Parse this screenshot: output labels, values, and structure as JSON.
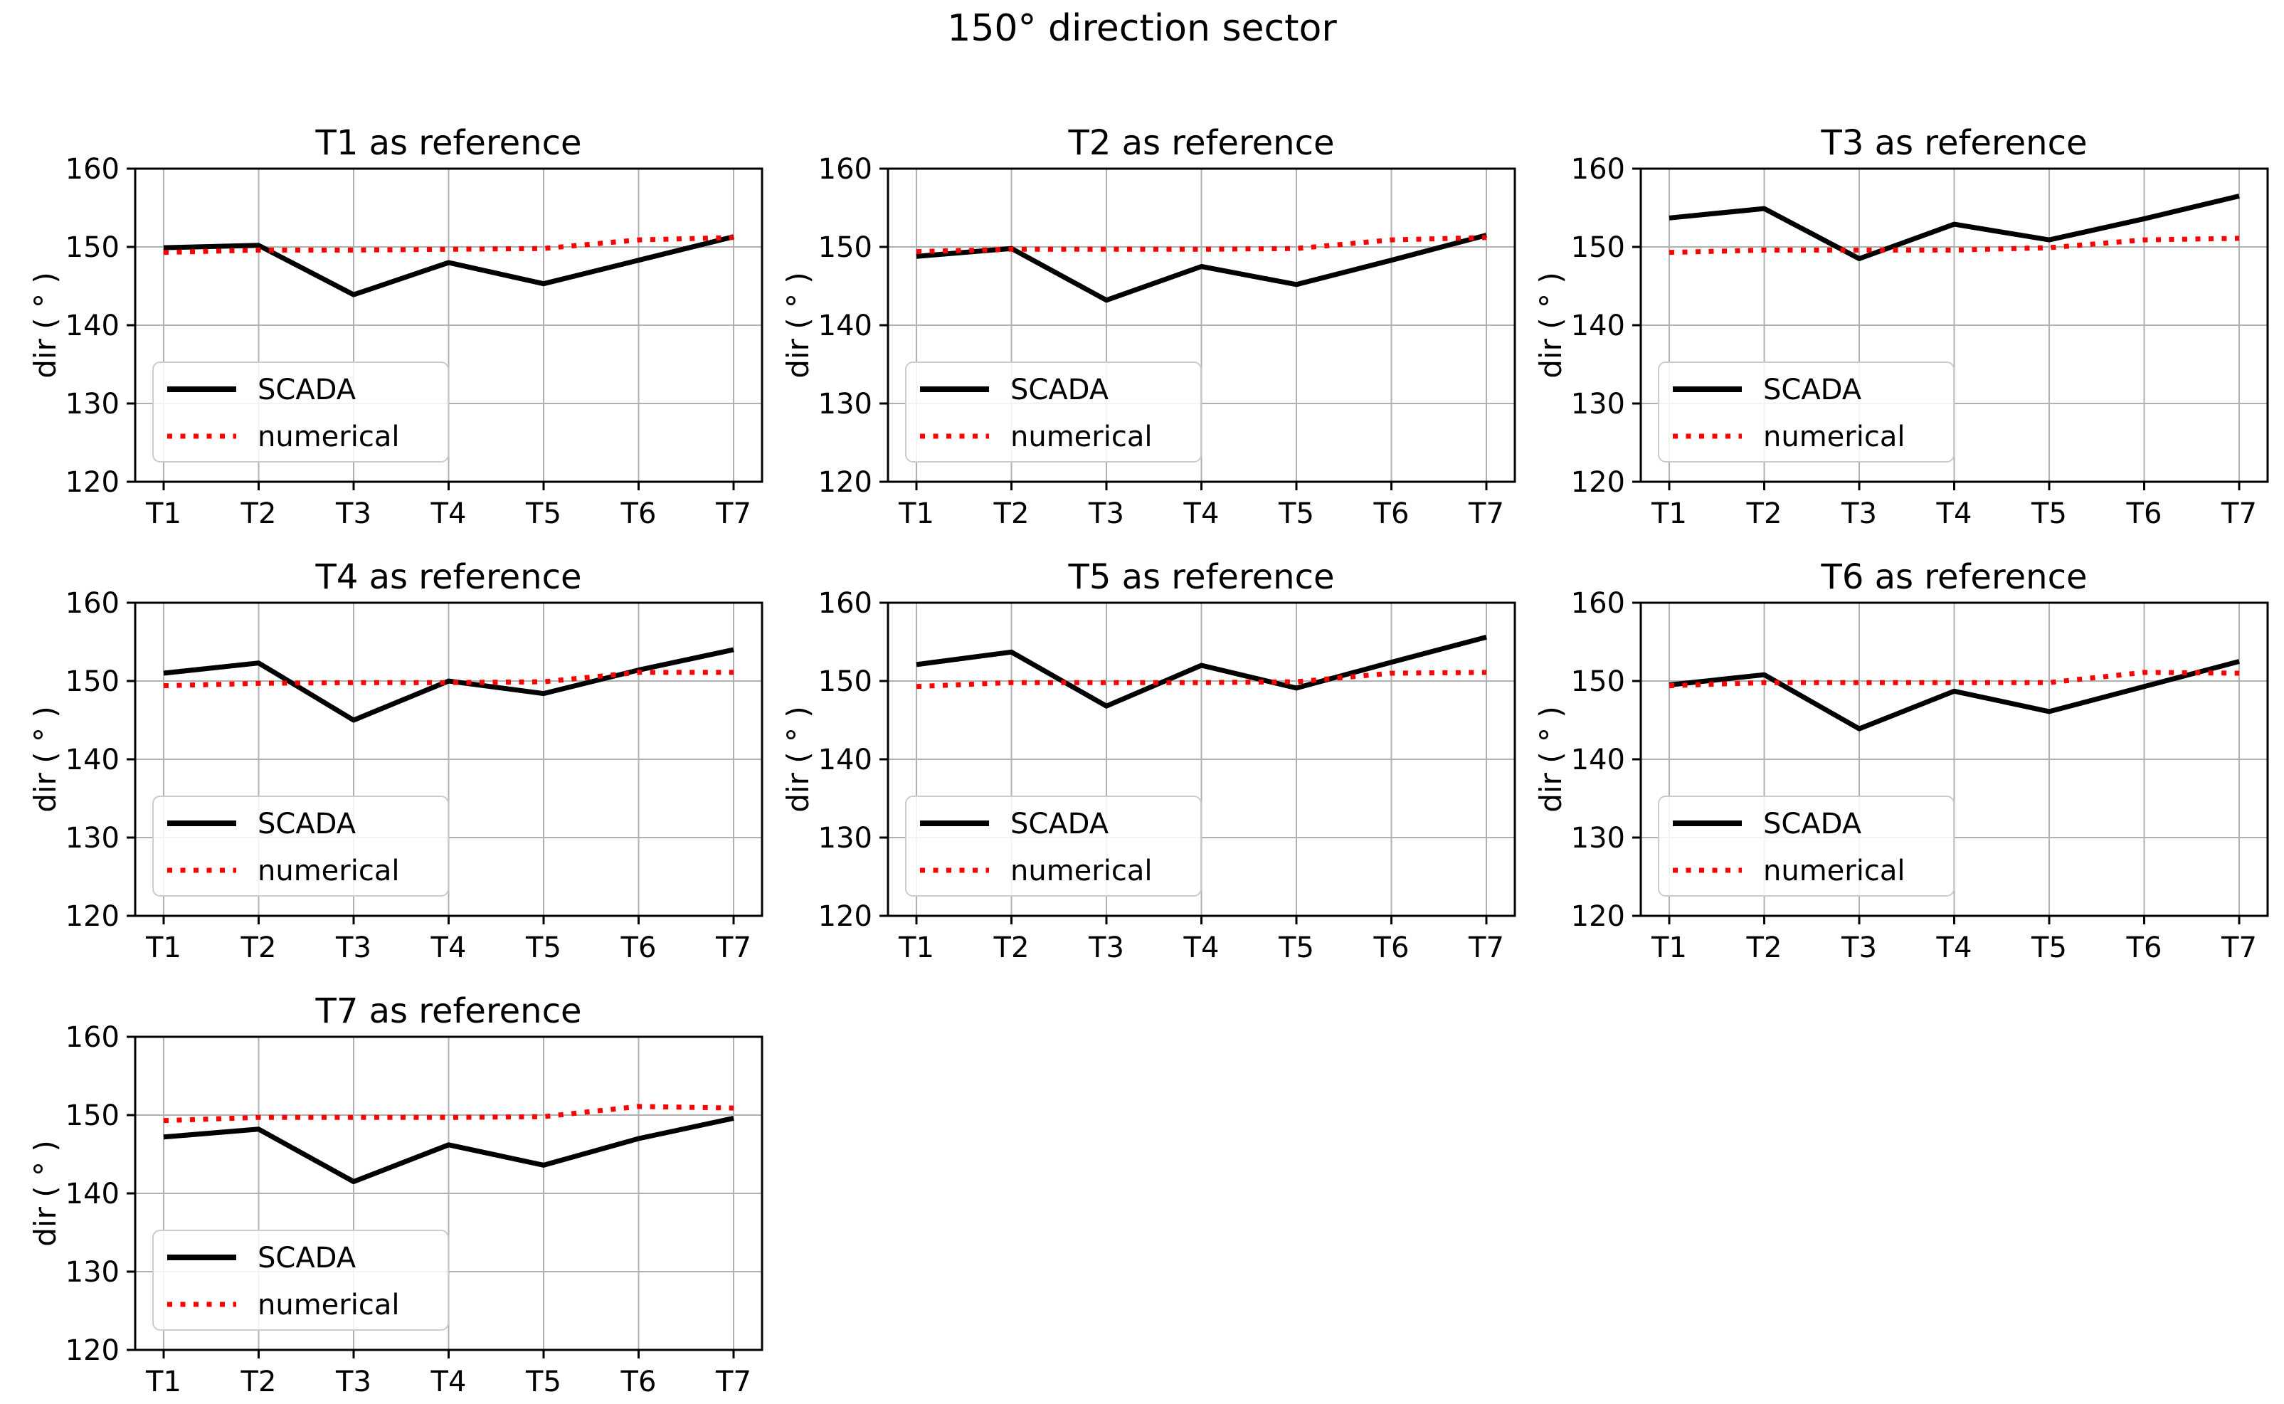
{
  "figure": {
    "suptitle": "150° direction sector",
    "background": "#ffffff"
  },
  "style": {
    "scada_color": "#000000",
    "numerical_color": "#ff0000",
    "grid_color": "#b0b0b0",
    "spine_color": "#000000",
    "legend_border_color": "#cccccc",
    "legend_fill": "#ffffff"
  },
  "legend": {
    "scada_label": "SCADA",
    "numerical_label": "numerical"
  },
  "axis": {
    "ylabel": "dir ( ° )",
    "ylim": [
      120,
      160
    ],
    "yticks": [
      120,
      130,
      140,
      150,
      160
    ],
    "categories": [
      "T1",
      "T2",
      "T3",
      "T4",
      "T5",
      "T6",
      "T7"
    ]
  },
  "chart_data": [
    {
      "type": "line",
      "title": "T1 as reference",
      "categories": [
        "T1",
        "T2",
        "T3",
        "T4",
        "T5",
        "T6",
        "T7"
      ],
      "xlabel": "",
      "ylabel": "dir ( ° )",
      "ylim": [
        120,
        160
      ],
      "yticks": [
        120,
        130,
        140,
        150,
        160
      ],
      "grid": true,
      "legend_position": "lower left",
      "series": [
        {
          "name": "SCADA",
          "style": "solid",
          "color": "#000000",
          "values": [
            149.9,
            150.2,
            143.9,
            148.0,
            145.3,
            148.3,
            151.3
          ]
        },
        {
          "name": "numerical",
          "style": "dotted",
          "color": "#ff0000",
          "values": [
            149.3,
            149.6,
            149.6,
            149.7,
            149.8,
            150.9,
            151.2
          ]
        }
      ]
    },
    {
      "type": "line",
      "title": "T2 as reference",
      "categories": [
        "T1",
        "T2",
        "T3",
        "T4",
        "T5",
        "T6",
        "T7"
      ],
      "xlabel": "",
      "ylabel": "dir ( ° )",
      "ylim": [
        120,
        160
      ],
      "yticks": [
        120,
        130,
        140,
        150,
        160
      ],
      "grid": true,
      "legend_position": "lower left",
      "series": [
        {
          "name": "SCADA",
          "style": "solid",
          "color": "#000000",
          "values": [
            148.8,
            149.8,
            143.2,
            147.5,
            145.2,
            148.3,
            151.5
          ]
        },
        {
          "name": "numerical",
          "style": "dotted",
          "color": "#ff0000",
          "values": [
            149.4,
            149.7,
            149.7,
            149.7,
            149.8,
            150.9,
            151.2
          ]
        }
      ]
    },
    {
      "type": "line",
      "title": "T3 as reference",
      "categories": [
        "T1",
        "T2",
        "T3",
        "T4",
        "T5",
        "T6",
        "T7"
      ],
      "xlabel": "",
      "ylabel": "dir ( ° )",
      "ylim": [
        120,
        160
      ],
      "yticks": [
        120,
        130,
        140,
        150,
        160
      ],
      "grid": true,
      "legend_position": "lower left",
      "series": [
        {
          "name": "SCADA",
          "style": "solid",
          "color": "#000000",
          "values": [
            153.7,
            154.9,
            148.5,
            152.9,
            150.9,
            153.6,
            156.5
          ]
        },
        {
          "name": "numerical",
          "style": "dotted",
          "color": "#ff0000",
          "values": [
            149.3,
            149.6,
            149.6,
            149.6,
            149.9,
            150.9,
            151.1
          ]
        }
      ]
    },
    {
      "type": "line",
      "title": "T4 as reference",
      "categories": [
        "T1",
        "T2",
        "T3",
        "T4",
        "T5",
        "T6",
        "T7"
      ],
      "xlabel": "",
      "ylabel": "dir ( ° )",
      "ylim": [
        120,
        160
      ],
      "yticks": [
        120,
        130,
        140,
        150,
        160
      ],
      "grid": true,
      "legend_position": "lower left",
      "series": [
        {
          "name": "SCADA",
          "style": "solid",
          "color": "#000000",
          "values": [
            151.0,
            152.3,
            145.0,
            150.0,
            148.4,
            151.4,
            154.0
          ]
        },
        {
          "name": "numerical",
          "style": "dotted",
          "color": "#ff0000",
          "values": [
            149.4,
            149.7,
            149.8,
            149.8,
            149.9,
            151.1,
            151.1
          ]
        }
      ]
    },
    {
      "type": "line",
      "title": "T5 as reference",
      "categories": [
        "T1",
        "T2",
        "T3",
        "T4",
        "T5",
        "T6",
        "T7"
      ],
      "xlabel": "",
      "ylabel": "dir ( ° )",
      "ylim": [
        120,
        160
      ],
      "yticks": [
        120,
        130,
        140,
        150,
        160
      ],
      "grid": true,
      "legend_position": "lower left",
      "series": [
        {
          "name": "SCADA",
          "style": "solid",
          "color": "#000000",
          "values": [
            152.1,
            153.7,
            146.8,
            152.0,
            149.1,
            152.4,
            155.6
          ]
        },
        {
          "name": "numerical",
          "style": "dotted",
          "color": "#ff0000",
          "values": [
            149.3,
            149.8,
            149.8,
            149.8,
            149.9,
            151.0,
            151.1
          ]
        }
      ]
    },
    {
      "type": "line",
      "title": "T6 as reference",
      "categories": [
        "T1",
        "T2",
        "T3",
        "T4",
        "T5",
        "T6",
        "T7"
      ],
      "xlabel": "",
      "ylabel": "dir ( ° )",
      "ylim": [
        120,
        160
      ],
      "yticks": [
        120,
        130,
        140,
        150,
        160
      ],
      "grid": true,
      "legend_position": "lower left",
      "series": [
        {
          "name": "SCADA",
          "style": "solid",
          "color": "#000000",
          "values": [
            149.5,
            150.8,
            143.9,
            148.7,
            146.1,
            149.3,
            152.5
          ]
        },
        {
          "name": "numerical",
          "style": "dotted",
          "color": "#ff0000",
          "values": [
            149.4,
            149.8,
            149.8,
            149.8,
            149.8,
            151.1,
            151.0
          ]
        }
      ]
    },
    {
      "type": "line",
      "title": "T7 as reference",
      "categories": [
        "T1",
        "T2",
        "T3",
        "T4",
        "T5",
        "T6",
        "T7"
      ],
      "xlabel": "",
      "ylabel": "dir ( ° )",
      "ylim": [
        120,
        160
      ],
      "yticks": [
        120,
        130,
        140,
        150,
        160
      ],
      "grid": true,
      "legend_position": "lower left",
      "series": [
        {
          "name": "SCADA",
          "style": "solid",
          "color": "#000000",
          "values": [
            147.2,
            148.2,
            141.5,
            146.2,
            143.6,
            147.0,
            149.6
          ]
        },
        {
          "name": "numerical",
          "style": "dotted",
          "color": "#ff0000",
          "values": [
            149.3,
            149.7,
            149.7,
            149.7,
            149.8,
            151.1,
            150.9
          ]
        }
      ]
    }
  ]
}
